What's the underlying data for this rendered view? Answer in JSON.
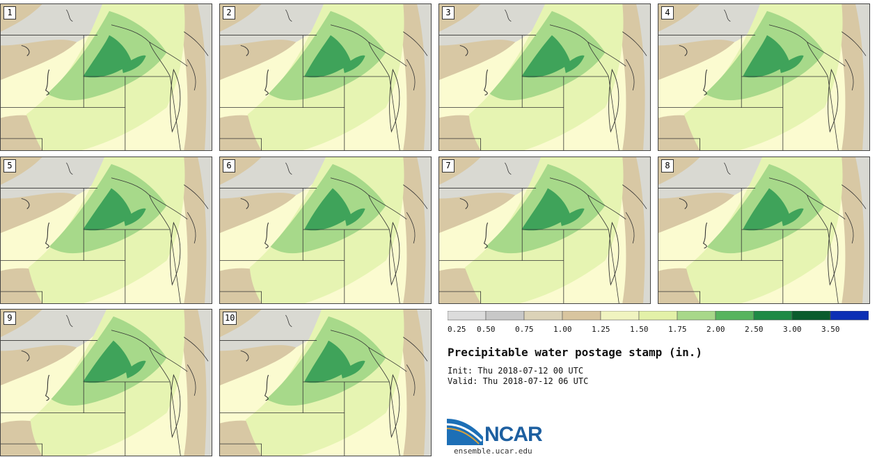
{
  "title": "Precipitable water postage stamp (in.)",
  "init_label": "Init: Thu 2018-07-12 00 UTC",
  "valid_label": "Valid: Thu 2018-07-12 06 UTC",
  "panels": [
    {
      "label": "1"
    },
    {
      "label": "2"
    },
    {
      "label": "3"
    },
    {
      "label": "4"
    },
    {
      "label": "5"
    },
    {
      "label": "6"
    },
    {
      "label": "7"
    },
    {
      "label": "8"
    },
    {
      "label": "9"
    },
    {
      "label": "10"
    }
  ],
  "legend": {
    "ticks": [
      "0.25",
      "0.50",
      "0.75",
      "1.00",
      "1.25",
      "1.50",
      "1.75",
      "2.00",
      "2.50",
      "3.00",
      "3.50"
    ],
    "colors": [
      "#dcdcdc",
      "#c8c8c8",
      "#dcd3b8",
      "#d9c59f",
      "#f0f4c0",
      "#e3f1a8",
      "#a8d88a",
      "#57b45e",
      "#1e8a45",
      "#0a5c2d",
      "#0c2fb5"
    ]
  },
  "colors": {
    "background": "#fbfbd0",
    "pw_low_gray": "#d9d9d2",
    "pw_tan": "#d8c8a4",
    "pw_light_green": "#e6f4b2",
    "pw_mid_green": "#a7d98a",
    "pw_dark_green": "#3fa35a"
  },
  "logo": {
    "wordmark": "NCAR",
    "url": "ensemble.ucar.edu"
  }
}
